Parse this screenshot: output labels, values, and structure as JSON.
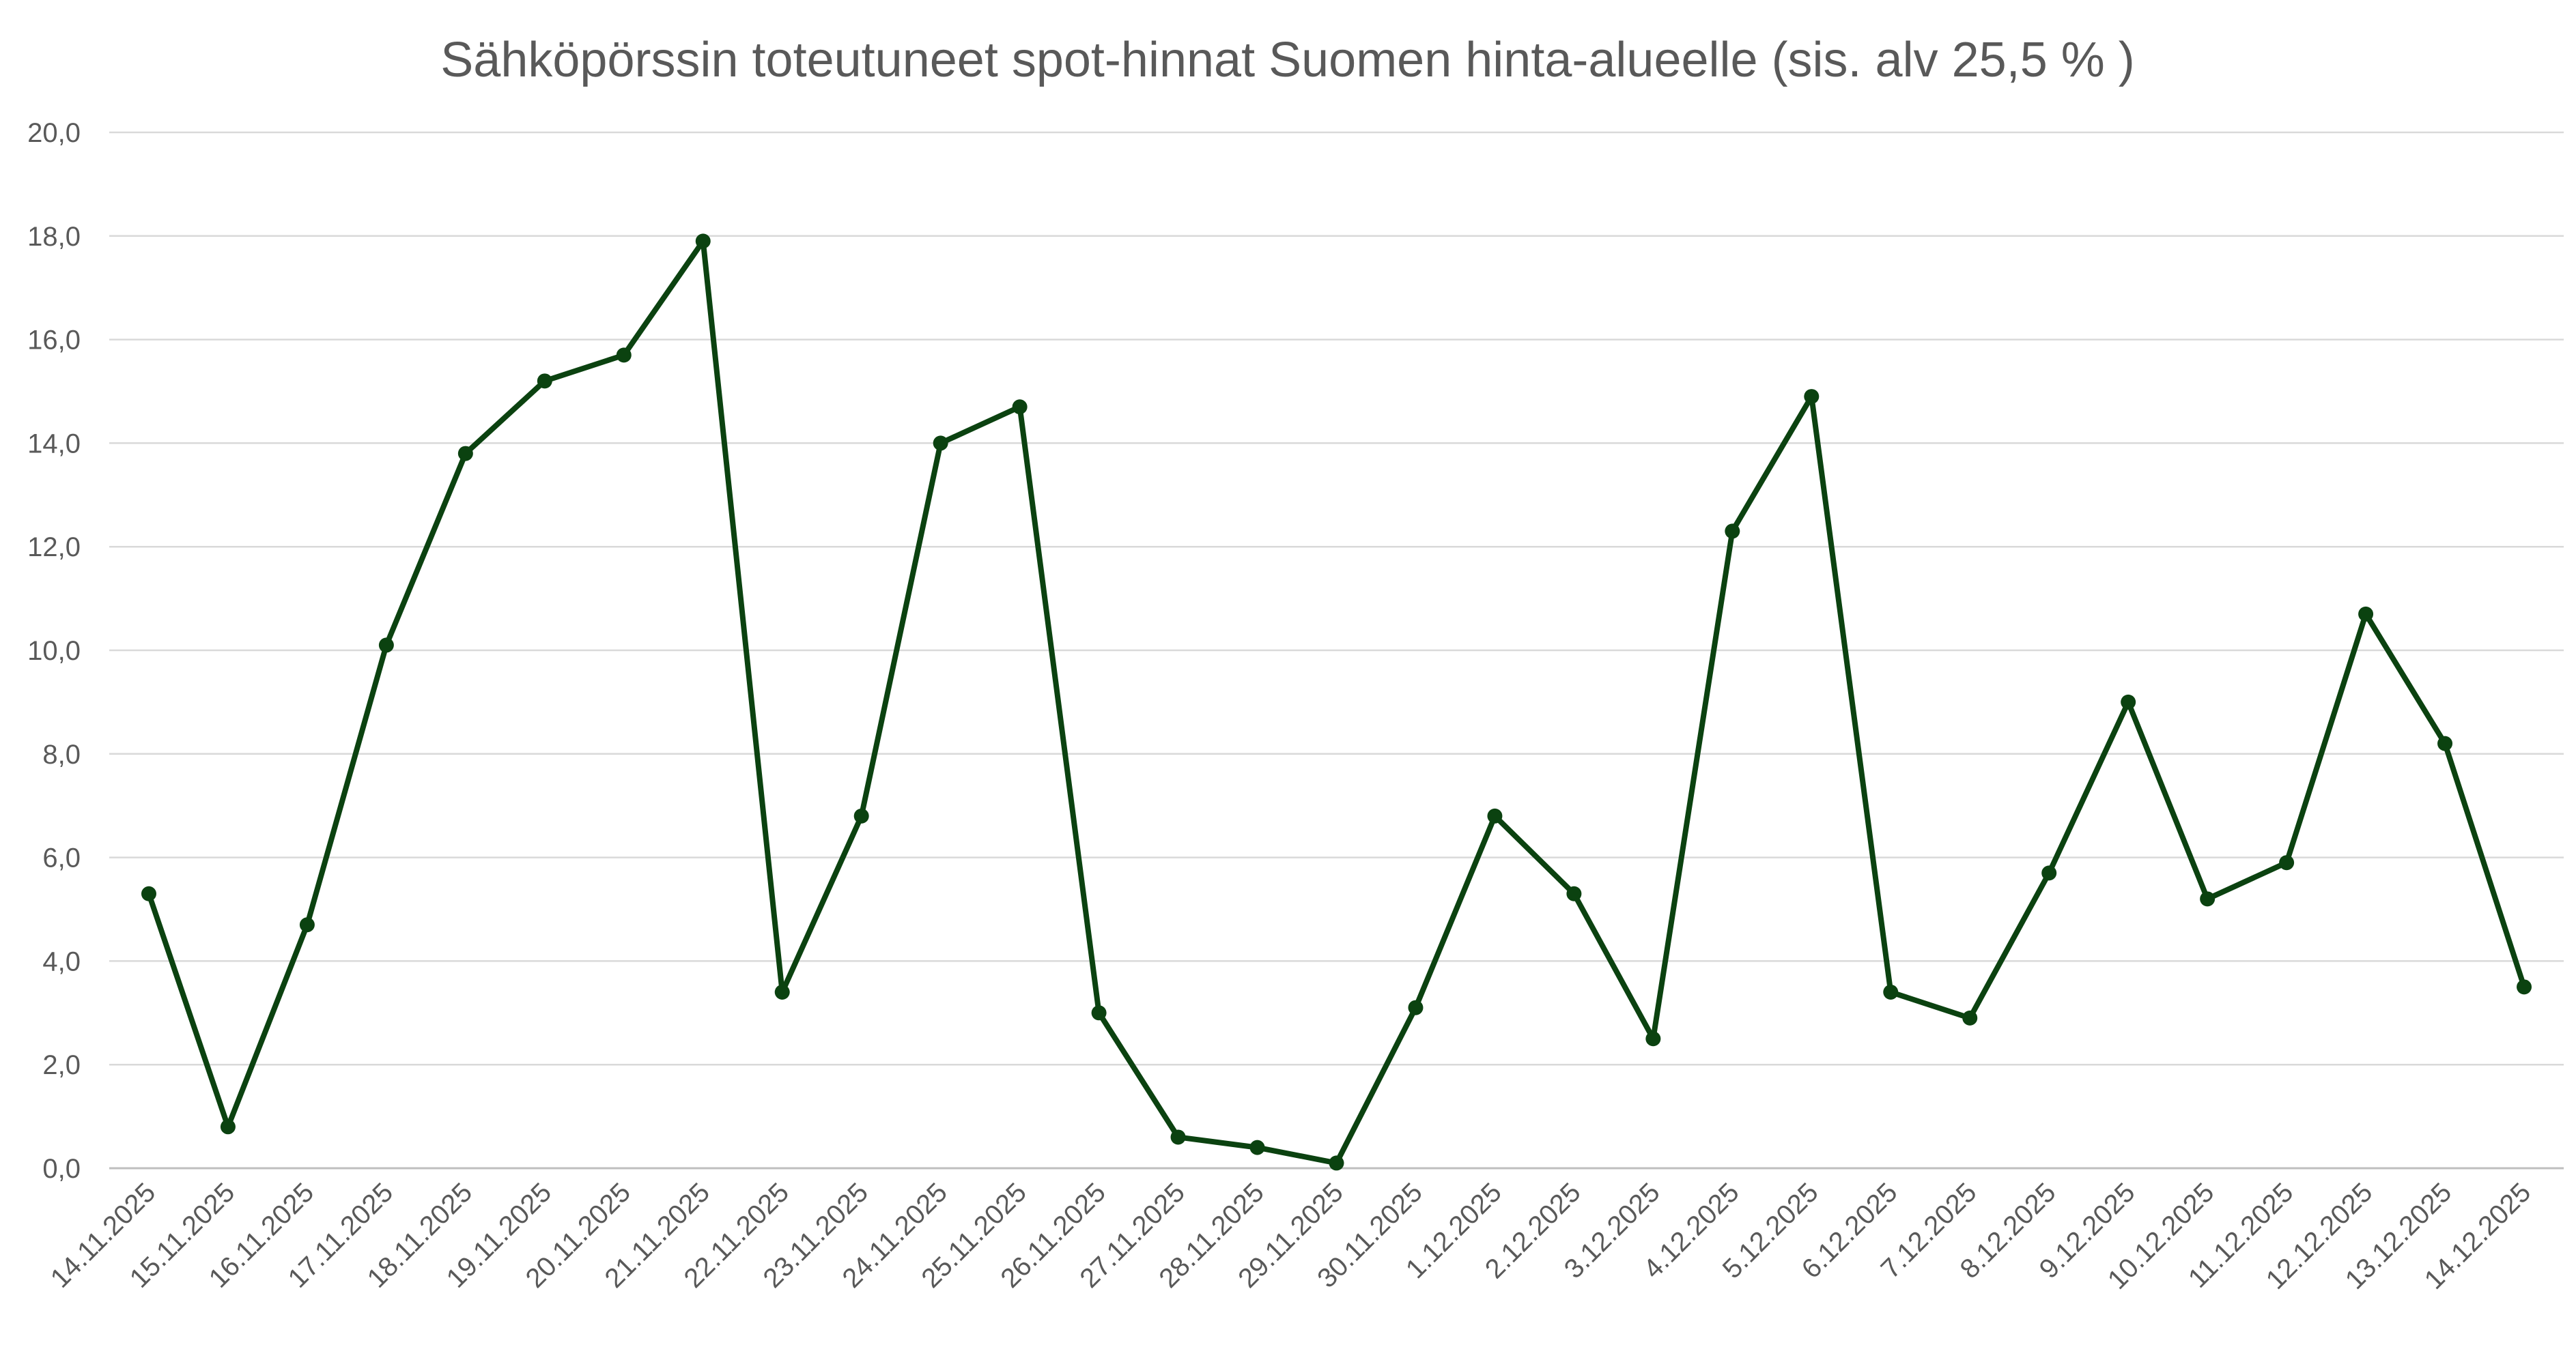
{
  "chart_data": {
    "type": "line",
    "title": "Sähköpörssin toteutuneet spot-hinnat Suomen hinta-alueelle (sis. alv 25,5 % )",
    "xlabel": "",
    "ylabel": "",
    "ylim": [
      0,
      20
    ],
    "y_ticks": [
      "0,0",
      "2,0",
      "4,0",
      "6,0",
      "8,0",
      "10,0",
      "12,0",
      "14,0",
      "16,0",
      "18,0",
      "20,0"
    ],
    "y_tick_values": [
      0,
      2,
      4,
      6,
      8,
      10,
      12,
      14,
      16,
      18,
      20
    ],
    "grid": true,
    "legend": "none",
    "categories": [
      "14.11.2025",
      "15.11.2025",
      "16.11.2025",
      "17.11.2025",
      "18.11.2025",
      "19.11.2025",
      "20.11.2025",
      "21.11.2025",
      "22.11.2025",
      "23.11.2025",
      "24.11.2025",
      "25.11.2025",
      "26.11.2025",
      "27.11.2025",
      "28.11.2025",
      "29.11.2025",
      "30.11.2025",
      "1.12.2025",
      "2.12.2025",
      "3.12.2025",
      "4.12.2025",
      "5.12.2025",
      "6.12.2025",
      "7.12.2025",
      "8.12.2025",
      "9.12.2025",
      "10.12.2025",
      "11.12.2025",
      "12.12.2025",
      "13.12.2025",
      "14.12.2025"
    ],
    "series": [
      {
        "color": "#0b4210",
        "values": [
          5.3,
          0.8,
          4.7,
          10.1,
          13.8,
          15.2,
          15.7,
          17.9,
          3.4,
          6.8,
          14.0,
          14.7,
          3.0,
          0.6,
          0.4,
          0.1,
          3.1,
          6.8,
          5.3,
          2.5,
          12.3,
          14.9,
          3.4,
          2.9,
          5.7,
          9.0,
          5.2,
          5.9,
          10.7,
          8.2,
          3.5
        ]
      }
    ]
  }
}
